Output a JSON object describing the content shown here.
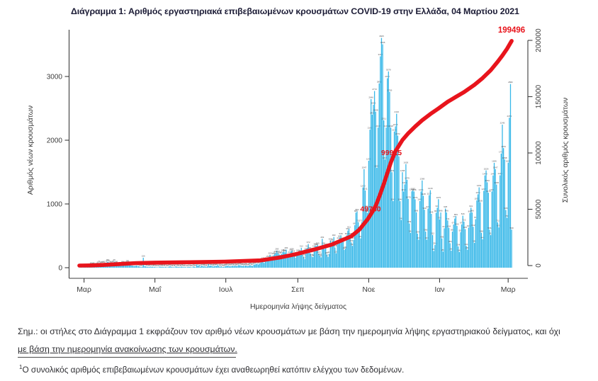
{
  "header": {
    "title": "Διάγραμμα 1: Αριθμός εργαστηριακά επιβεβαιωμένων κρουσμάτων COVID-19 στην Ελλάδα, 04 Μαρτίου 2021"
  },
  "colors": {
    "bar": "#35b7e8",
    "line": "#e8141c",
    "title_text": "#1c1c36",
    "body_text": "#2f2f33",
    "axis_text": "#3c3c3c",
    "bar_label": "#55565a"
  },
  "chart_data": {
    "type": "combo (daily bars + cumulative line)",
    "xlabel": "Ημερομηνία λήψης δείγματος",
    "x_tick_labels": [
      "Μαρ",
      "Μαΐ",
      "Ιουλ",
      "Σεπ",
      "Νοε",
      "Ιαν",
      "Μαρ"
    ],
    "x_tick_day_index": [
      4,
      65,
      126,
      188,
      249,
      310,
      369
    ],
    "left_axis": {
      "label": "Αριθμός νέων κρουσμάτων",
      "ticks": [
        0,
        1000,
        2000,
        3000
      ],
      "range": [
        0,
        3750
      ],
      "grid": false
    },
    "right_axis": {
      "label": "Συνολικός αριθμός κρουσμάτων",
      "ticks": [
        0,
        50000,
        100000,
        150000,
        200000
      ],
      "range": [
        0,
        200000
      ],
      "grid": false
    },
    "bars": {
      "name": "Νέα κρούσματα ανά ημερομηνία λήψης δείγματος",
      "values": [
        3,
        4,
        7,
        4,
        7,
        10,
        14,
        21,
        31,
        17,
        45,
        39,
        46,
        33,
        35,
        41,
        55,
        71,
        48,
        60,
        61,
        66,
        46,
        71,
        94,
        88,
        71,
        56,
        69,
        71,
        96,
        56,
        69,
        40,
        48,
        52,
        43,
        68,
        60,
        34,
        62,
        77,
        81,
        52,
        56,
        33,
        31,
        25,
        28,
        33,
        26,
        22,
        15,
        10,
        12,
        156,
        24,
        21,
        16,
        12,
        10,
        17,
        11,
        14,
        10,
        12,
        6,
        8,
        4,
        15,
        13,
        10,
        14,
        7,
        12,
        9,
        5,
        16,
        22,
        14,
        8,
        10,
        6,
        21,
        13,
        10,
        12,
        9,
        18,
        12,
        8,
        11,
        6,
        9,
        14,
        12,
        8,
        5,
        19,
        14,
        10,
        52,
        31,
        41,
        14,
        32,
        29,
        19,
        25,
        11,
        21,
        58,
        28,
        35,
        31,
        19,
        23,
        30,
        28,
        43,
        29,
        11,
        24,
        10,
        12,
        19,
        26,
        31,
        33,
        24,
        22,
        27,
        31,
        25,
        33,
        26,
        29,
        41,
        37,
        35,
        27,
        30,
        26,
        34,
        31,
        24,
        36,
        40,
        32,
        27,
        45,
        51,
        58,
        64,
        50,
        65,
        78,
        110,
        121,
        75,
        121,
        124,
        153,
        124,
        203,
        151,
        126,
        196,
        212,
        230,
        269,
        228,
        209,
        160,
        217,
        246,
        251,
        240,
        284,
        157,
        168,
        218,
        258,
        270,
        233,
        200,
        157,
        188,
        243,
        207,
        241,
        312,
        204,
        173,
        137,
        268,
        310,
        372,
        286,
        224,
        175,
        166,
        310,
        346,
        339,
        359,
        218,
        186,
        162,
        453,
        358,
        293,
        338,
        207,
        170,
        218,
        426,
        390,
        417,
        482,
        318,
        226,
        384,
        441,
        468,
        508,
        437,
        411,
        280,
        298,
        508,
        582,
        611,
        508,
        397,
        342,
        438,
        667,
        865,
        882,
        715,
        595,
        461,
        715,
        1259,
        1547,
        1211,
        936,
        860,
        1678,
        2166,
        2646,
        2401,
        2556,
        2772,
        2448,
        1566,
        2198,
        2891,
        3316,
        3605,
        3505,
        2311,
        1698,
        2198,
        2972,
        3079,
        2759,
        2198,
        1498,
        1044,
        2135,
        2218,
        2416,
        2072,
        1747,
        1044,
        748,
        1498,
        1194,
        1307,
        1626,
        1379,
        1078,
        694,
        546,
        1199,
        1215,
        1196,
        1073,
        869,
        534,
        439,
        1046,
        1196,
        1369,
        1128,
        909,
        566,
        439,
        928,
        1137,
        1216,
        845,
        512,
        262,
        356,
        862,
        941,
        1075,
        758,
        866,
        459,
        252,
        618,
        928,
        866,
        741,
        624,
        384,
        266,
        566,
        678,
        771,
        809,
        655,
        334,
        246,
        558,
        679,
        816,
        722,
        605,
        341,
        282,
        629,
        858,
        941,
        866,
        642,
        389,
        761,
        1056,
        1151,
        1261,
        1026,
        548,
        446,
        1206,
        1448,
        1526,
        1340,
        1176,
        596,
        511,
        1196,
        1447,
        1646,
        1547,
        1305,
        711,
        632,
        1449,
        1790,
        2245,
        1876,
        1698,
        905,
        782,
        1648,
        2353,
        2882,
        598
      ]
    },
    "line": {
      "name": "Συνολικός αριθμός κρουσμάτων",
      "points": [
        [
          0,
          10
        ],
        [
          10,
          100
        ],
        [
          18,
          420
        ],
        [
          34,
          1310
        ],
        [
          49,
          2230
        ],
        [
          65,
          2600
        ],
        [
          95,
          2950
        ],
        [
          125,
          3450
        ],
        [
          156,
          4590
        ],
        [
          172,
          7100
        ],
        [
          187,
          10300
        ],
        [
          202,
          14200
        ],
        [
          217,
          18600
        ],
        [
          234,
          26000
        ],
        [
          241,
          32000
        ],
        [
          248,
          41000
        ],
        [
          252,
          47500
        ],
        [
          255,
          53000
        ],
        [
          258,
          61000
        ],
        [
          262,
          72500
        ],
        [
          265,
          82000
        ],
        [
          268,
          91500
        ],
        [
          272,
          101500
        ],
        [
          278,
          111500
        ],
        [
          283,
          117500
        ],
        [
          289,
          123500
        ],
        [
          295,
          129000
        ],
        [
          302,
          134500
        ],
        [
          309,
          139500
        ],
        [
          317,
          145500
        ],
        [
          324,
          149800
        ],
        [
          331,
          154000
        ],
        [
          340,
          160500
        ],
        [
          347,
          166500
        ],
        [
          354,
          173500
        ],
        [
          360,
          181000
        ],
        [
          364,
          186500
        ],
        [
          368,
          192500
        ],
        [
          372,
          199496
        ]
      ]
    },
    "annotations": [
      {
        "text": "49740",
        "day": 253,
        "value": 50000,
        "placement": "on-line"
      },
      {
        "text": "99925",
        "day": 271,
        "value": 100000,
        "placement": "on-line"
      },
      {
        "text": "199496",
        "day": 372,
        "value": 199496,
        "placement": "end"
      }
    ]
  },
  "notes": {
    "line1": "Σημ.: οι στήλες στο Διάγραμμα 1 εκφράζουν τον αριθμό νέων κρουσμάτων με βάση την ημερομηνία λήψης εργαστηριακού δείγματος, και όχι",
    "line2": "με βάση την ημερομηνία ανακοίνωσης των κρουσμάτων.",
    "footnote_marker": "1",
    "footnote_text": "Ο συνολικός αριθμός επιβεβαιωμένων κρουσμάτων έχει αναθεωρηθεί κατόπιν ελέγχου των δεδομένων."
  }
}
